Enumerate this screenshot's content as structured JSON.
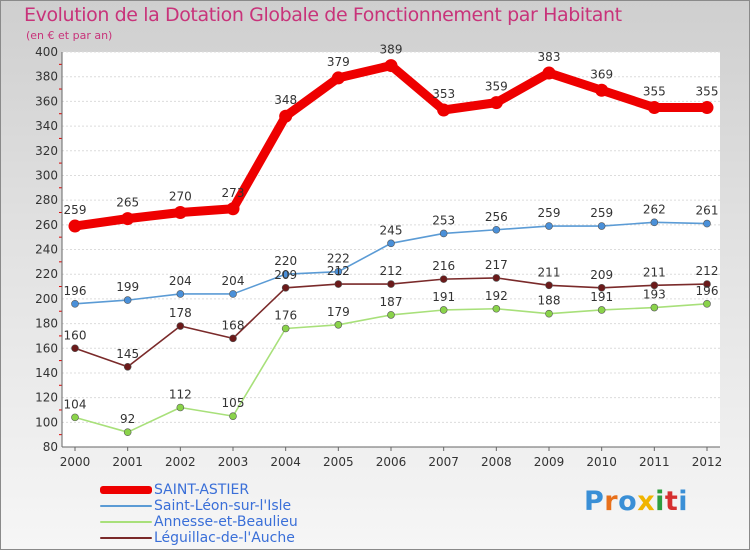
{
  "header": {
    "title": "Evolution de la Dotation Globale de Fonctionnement par Habitant",
    "subtitle": "(en € et par an)"
  },
  "chart_data": {
    "type": "line",
    "title": "Evolution de la Dotation Globale de Fonctionnement par Habitant",
    "subtitle": "(en € et par an)",
    "xlabel": "",
    "ylabel": "",
    "x": [
      "2000",
      "2001",
      "2002",
      "2003",
      "2004",
      "2005",
      "2006",
      "2007",
      "2008",
      "2009",
      "2010",
      "2011",
      "2012"
    ],
    "ylim": [
      80,
      400
    ],
    "ytick_step": 20,
    "grid": "horizontal",
    "legend_position": "bottom-left",
    "series": [
      {
        "name": "SAINT-ASTIER",
        "color": "#ee0000",
        "emphasis": "bold",
        "values": [
          259,
          265,
          270,
          273,
          348,
          379,
          389,
          353,
          359,
          383,
          369,
          355,
          355
        ]
      },
      {
        "name": "Saint-Léon-sur-l'Isle",
        "color": "#5b9bd5",
        "marker_color": "#4a90d9",
        "values": [
          196,
          199,
          204,
          204,
          220,
          222,
          245,
          253,
          256,
          259,
          259,
          262,
          261
        ]
      },
      {
        "name": "Annesse-et-Beaulieu",
        "color": "#a8e07a",
        "marker_color": "#8ad34a",
        "values": [
          104,
          92,
          112,
          105,
          176,
          179,
          187,
          191,
          192,
          188,
          191,
          193,
          196
        ]
      },
      {
        "name": "Léguillac-de-l'Auche",
        "color": "#7a2a2a",
        "marker_color": "#6b1a1a",
        "values": [
          160,
          145,
          178,
          168,
          209,
          212,
          212,
          216,
          217,
          211,
          209,
          211,
          212
        ]
      }
    ]
  },
  "brand": {
    "logo_letters": [
      "P",
      "r",
      "o",
      "x",
      "i",
      "t",
      "i"
    ],
    "logo_colors": [
      "#3a8fd6",
      "#e8701a",
      "#3a8fd6",
      "#f0b400",
      "#2e9d3f",
      "#d62f2f",
      "#3a8fd6"
    ]
  }
}
